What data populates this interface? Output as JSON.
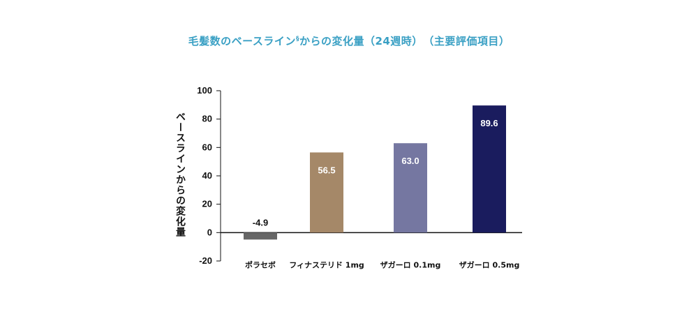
{
  "chart_data": {
    "type": "bar",
    "title": "毛髪数のベースライン",
    "title_mark": "§",
    "title_suffix": "からの変化量（24週時）　（主要評価項目）",
    "ylabel": "ベースラインからの変化量",
    "xlabel": "",
    "ylim": [
      -20,
      100
    ],
    "yticks": [
      100,
      80,
      60,
      40,
      20,
      0,
      -20
    ],
    "grid": false,
    "categories": [
      "ポラセボ",
      "フィナステリド 1mg",
      "ザガーロ 0.1mg",
      "ザガーロ 0.5mg"
    ],
    "values": [
      -4.9,
      56.5,
      63.0,
      89.6
    ],
    "value_labels": [
      "-4.9",
      "56.5",
      "63.0",
      "89.6"
    ],
    "colors": [
      "#666666",
      "#a58868",
      "#7577a1",
      "#1a1c5e"
    ]
  }
}
